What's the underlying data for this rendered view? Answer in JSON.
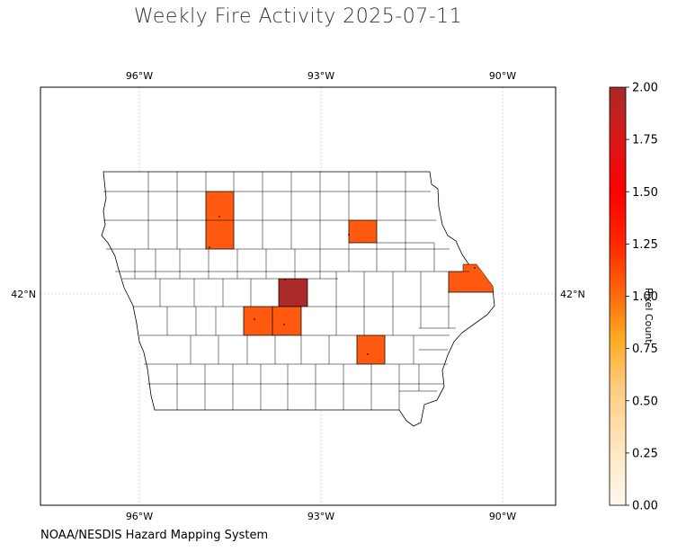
{
  "title": "Weekly Fire Activity 2025-07-11",
  "footer": "NOAA/NESDIS Hazard Mapping System",
  "colorbar": {
    "label": "Pixel Count",
    "min": 0.0,
    "max": 2.0,
    "ticks": [
      "0.00",
      "0.25",
      "0.50",
      "0.75",
      "1.00",
      "1.25",
      "1.50",
      "1.75",
      "2.00"
    ],
    "colors": [
      "#fff5e6",
      "#ffe3b0",
      "#ffc870",
      "#ffa500",
      "#ff6a00",
      "#ff1f00",
      "#e60d0d",
      "#b01e1e"
    ]
  },
  "axes": {
    "lon_labels": [
      "96°W",
      "93°W",
      "90°W"
    ],
    "lat_labels": [
      "42°N"
    ]
  },
  "map": {
    "region": "Iowa counties",
    "highlighted_counties": [
      {
        "value": 1,
        "color": "#ff5a10"
      },
      {
        "value": 1,
        "color": "#ff5a10"
      },
      {
        "value": 1,
        "color": "#ff5a10"
      },
      {
        "value": 2,
        "color": "#ab2a2a"
      },
      {
        "value": 1,
        "color": "#ff5a10"
      },
      {
        "value": 1,
        "color": "#ff5a10"
      },
      {
        "value": 1,
        "color": "#ff5a10"
      }
    ]
  }
}
